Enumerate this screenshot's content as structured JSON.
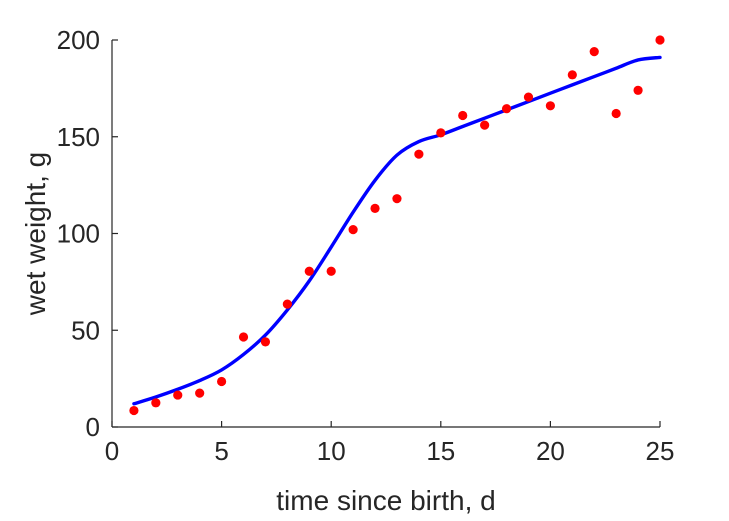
{
  "chart_data": {
    "type": "scatter",
    "title": "",
    "xlabel": "time since birth, d",
    "ylabel": "wet weight, g",
    "xlim": [
      0,
      25
    ],
    "ylim": [
      0,
      200
    ],
    "xticks": [
      0,
      5,
      10,
      15,
      20,
      25
    ],
    "yticks": [
      0,
      50,
      100,
      150,
      200
    ],
    "grid": false,
    "series": [
      {
        "kind": "points",
        "color": "#ff0000",
        "x": [
          1,
          2,
          3,
          4,
          5,
          6,
          7,
          8,
          9,
          10,
          11,
          12,
          13,
          14,
          15,
          16,
          17,
          18,
          19,
          20,
          21,
          22,
          23,
          24,
          25
        ],
        "y": [
          8.5,
          12.5,
          16.5,
          17.5,
          23.5,
          46.5,
          44,
          63.5,
          80.5,
          80.5,
          102,
          113,
          118,
          141,
          152,
          161,
          156,
          164.5,
          170.5,
          166,
          182,
          194,
          162,
          174,
          200
        ]
      },
      {
        "kind": "line",
        "color": "#0000ff",
        "x": [
          1,
          2,
          3,
          4,
          5,
          6,
          7,
          8,
          9,
          10,
          11,
          12,
          13,
          14,
          15,
          16,
          17,
          18,
          19,
          20,
          21,
          22,
          23,
          24,
          25
        ],
        "y": [
          12,
          15.5,
          19.5,
          24,
          29.5,
          37.5,
          47.5,
          60.5,
          75.5,
          93,
          111,
          127.5,
          140.5,
          147.5,
          151,
          155.3,
          159.6,
          163.9,
          168.2,
          172.5,
          176.8,
          181.1,
          185.4,
          189.7,
          191
        ]
      }
    ]
  }
}
